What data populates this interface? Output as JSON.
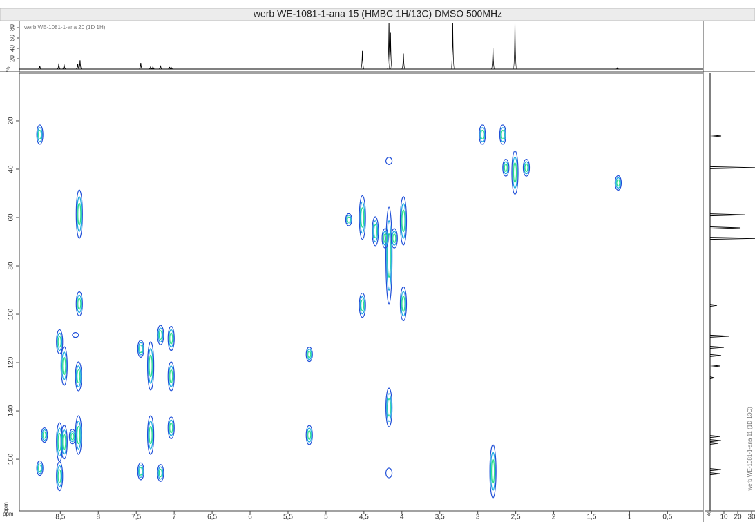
{
  "chart_data": {
    "type": "hmbc",
    "title": "werb WE-1081-1-ana 15 (HMBC 1H/13C) DMSO 500MHz",
    "x_label": "ppm",
    "y_label": "ppm",
    "xlim": [
      9.04,
      0.03
    ],
    "xticks": [
      {
        "value": 8.5,
        "label": "8,5"
      },
      8,
      {
        "value": 7.5,
        "label": "7,5"
      },
      7,
      {
        "value": 6.5,
        "label": "6,5"
      },
      6,
      {
        "value": 5.5,
        "label": "5,5"
      },
      5,
      {
        "value": 4.5,
        "label": "4,5"
      },
      4,
      {
        "value": 3.5,
        "label": "3,5"
      },
      3,
      {
        "value": 2.5,
        "label": "2,5"
      },
      2,
      {
        "value": 1.5,
        "label": "1,5"
      },
      1,
      {
        "value": 0.5,
        "label": "0,5"
      }
    ],
    "ylim": [
      0.3,
      181.4
    ],
    "yticks": [
      20,
      40,
      60,
      80,
      100,
      120,
      140,
      160
    ],
    "peaks": {
      "x": [
        8.77,
        2.94,
        2.67,
        2.51,
        2.63,
        2.36,
        1.15,
        8.25,
        8.25,
        4.52,
        4.35,
        4.17,
        3.98,
        4.7,
        4.22,
        4.1,
        4.52,
        3.98,
        7.18,
        7.04,
        7.44,
        7.31,
        7.04,
        8.51,
        8.45,
        8.26,
        5.22,
        4.17,
        7.31,
        7.04,
        8.26,
        8.51,
        8.45,
        8.71,
        8.34,
        5.22,
        8.77,
        8.51,
        7.44,
        7.18,
        2.8,
        4.17,
        4.17,
        8.3
      ],
      "y": [
        25.7,
        25.7,
        25.7,
        41.4,
        39.4,
        39.4,
        45.7,
        58.6,
        95.7,
        60,
        65.7,
        75.7,
        61.4,
        60.9,
        68.6,
        68.6,
        96.3,
        95.7,
        108.6,
        110,
        114.3,
        121.4,
        125.7,
        111.4,
        121.4,
        125.7,
        116.6,
        138.6,
        150,
        147,
        150,
        152.9,
        152.9,
        150,
        150.6,
        150,
        163.7,
        167,
        165,
        165.7,
        165,
        165.7,
        36.6,
        108.6
      ],
      "y_span": [
        8,
        8,
        8,
        18,
        7,
        7,
        6,
        20,
        10,
        18,
        12,
        40,
        20,
        5,
        8,
        8,
        10,
        14,
        8,
        10,
        7,
        20,
        12,
        10,
        16,
        12,
        6,
        16,
        16,
        9,
        16,
        16,
        14,
        6,
        6,
        8,
        6,
        12,
        7,
        7,
        22,
        4,
        3,
        2
      ]
    },
    "proton": {
      "label": "werb WE-1081-1-ana 20 (1D 1H)",
      "y_label": "%",
      "ylim": [
        0,
        88
      ],
      "yticks": [
        20,
        40,
        60,
        80
      ],
      "x": [
        8.77,
        8.52,
        8.45,
        8.27,
        8.24,
        7.44,
        7.31,
        7.28,
        7.18,
        7.06,
        7.04,
        4.52,
        4.17,
        4.15,
        3.98,
        3.33,
        2.8,
        2.51,
        1.16
      ],
      "values": [
        6,
        11,
        9,
        10,
        17,
        12,
        5,
        5,
        7,
        4,
        4,
        35,
        100,
        70,
        30,
        100,
        40,
        100,
        2
      ]
    },
    "carbon": {
      "label": "werb WE-1081-1-ana 11 (1D 13C)",
      "x_label": "%",
      "xlim": [
        -4,
        32.5
      ],
      "xticks": [
        10,
        20,
        30
      ],
      "shifts": [
        26.3,
        39.4,
        58.9,
        64.3,
        68.6,
        96.3,
        109.1,
        113.7,
        117.1,
        121.4,
        126.3,
        150.6,
        152.3,
        153.4,
        164.3,
        166
      ],
      "values": [
        8,
        33,
        25,
        22,
        35,
        5,
        14,
        10,
        8,
        7,
        3,
        7,
        8,
        6,
        8,
        7
      ]
    }
  }
}
